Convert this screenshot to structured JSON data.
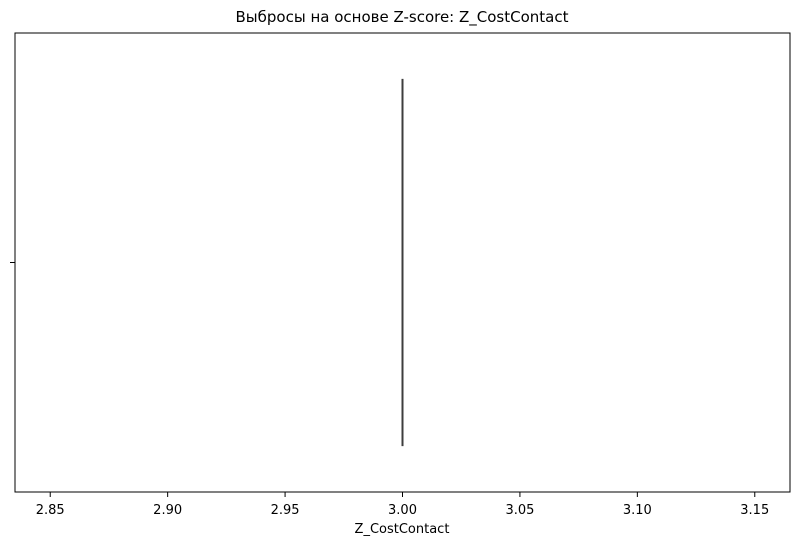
{
  "chart_data": {
    "type": "box",
    "title": "Выбросы на основе Z-score: Z_CostContact",
    "xlabel": "Z_CostContact",
    "ylabel": "",
    "xlim": [
      2.835,
      3.165
    ],
    "x_ticks": [
      2.85,
      2.9,
      2.95,
      3.0,
      3.05,
      3.1,
      3.15
    ],
    "x_tick_labels": [
      "2.85",
      "2.90",
      "2.95",
      "3.00",
      "3.05",
      "3.10",
      "3.15"
    ],
    "y_ticks": [
      ""
    ],
    "grid": false,
    "legend": "none",
    "box": {
      "min": 3.0,
      "q1": 3.0,
      "median": 3.0,
      "q3": 3.0,
      "max": 3.0
    },
    "colors": {
      "axes": "#000000",
      "box_line": "#3d3d3d",
      "background": "#ffffff"
    }
  }
}
